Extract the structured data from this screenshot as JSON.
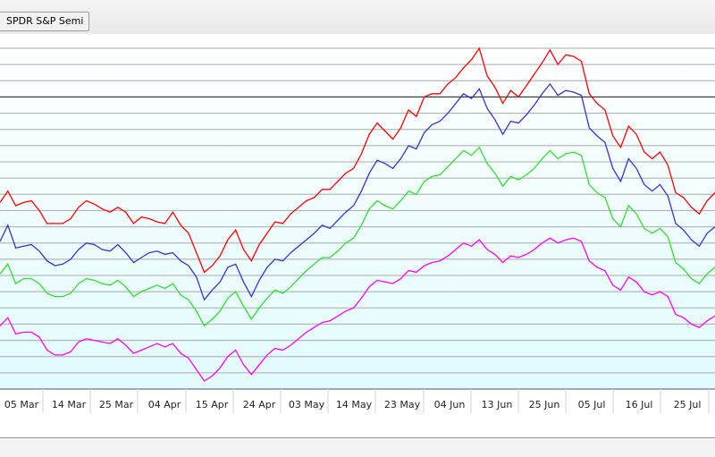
{
  "toolbar": {
    "title_button": "SPDR S&P Semi"
  },
  "chart_data": {
    "type": "line",
    "x_tick_labels": [
      "05 Mar",
      "14 Mar",
      "25 Mar",
      "04 Apr",
      "15 Apr",
      "24 Apr",
      "03 May",
      "14 May",
      "23 May",
      "04 Jun",
      "13 Jun",
      "25 Jun",
      "05 Jul",
      "16 Jul",
      "25 Jul"
    ],
    "grid": true,
    "reference_line": 18,
    "ylim": [
      0,
      21
    ],
    "series": [
      {
        "color": "#ff0000",
        "values": [
          11.5,
          12.2,
          11.3,
          11.5,
          11.6,
          11.0,
          10.2,
          10.2,
          10.2,
          10.5,
          11.2,
          11.6,
          11.4,
          11.1,
          10.9,
          11.2,
          10.9,
          10.2,
          10.6,
          10.5,
          10.3,
          10.2,
          10.9,
          10.1,
          9.6,
          8.4,
          7.2,
          7.6,
          8.2,
          9.2,
          9.8,
          8.6,
          7.9,
          8.9,
          9.6,
          10.3,
          10.2,
          10.8,
          11.2,
          11.6,
          11.8,
          12.3,
          12.3,
          12.8,
          13.3,
          13.6,
          14.5,
          15.7,
          16.4,
          15.9,
          15.4,
          16.1,
          17.2,
          16.8,
          18.0,
          18.2,
          18.2,
          18.8,
          19.2,
          19.8,
          20.3,
          21.0,
          19.3,
          18.6,
          17.6,
          18.4,
          18.0,
          18.7,
          19.4,
          20.1,
          20.9,
          20.0,
          20.6,
          20.5,
          20.2,
          18.2,
          17.6,
          17.2,
          15.6,
          14.9,
          16.2,
          15.7,
          14.6,
          14.2,
          14.6,
          13.8,
          12.1,
          11.8,
          11.2,
          10.8,
          11.6,
          12.1
        ]
      },
      {
        "color": "#3a2fd6",
        "values": [
          9.1,
          10.1,
          8.7,
          8.8,
          8.9,
          8.5,
          7.9,
          7.6,
          7.7,
          8.0,
          8.6,
          9.0,
          8.9,
          8.6,
          8.5,
          8.9,
          8.4,
          7.8,
          8.1,
          8.4,
          8.5,
          8.3,
          8.4,
          7.9,
          7.6,
          6.9,
          5.5,
          6.1,
          6.6,
          7.5,
          7.7,
          6.6,
          5.7,
          6.7,
          7.5,
          8.0,
          7.9,
          8.4,
          8.8,
          9.2,
          9.6,
          10.1,
          9.9,
          10.4,
          10.9,
          11.3,
          12.2,
          13.3,
          14.1,
          13.9,
          13.6,
          14.2,
          15.0,
          14.8,
          15.8,
          16.3,
          16.5,
          17.0,
          17.6,
          18.2,
          17.9,
          18.5,
          17.3,
          16.6,
          15.7,
          16.5,
          16.4,
          16.9,
          17.5,
          18.2,
          18.8,
          18.1,
          18.4,
          18.3,
          18.1,
          16.1,
          15.6,
          15.2,
          13.6,
          12.8,
          14.2,
          13.6,
          12.6,
          12.2,
          12.6,
          11.9,
          10.2,
          9.8,
          9.2,
          8.8,
          9.6,
          10.0
        ]
      },
      {
        "color": "#2ee02e",
        "values": [
          7.1,
          7.7,
          6.5,
          6.8,
          6.8,
          6.5,
          5.9,
          5.7,
          5.7,
          5.9,
          6.5,
          6.8,
          6.7,
          6.5,
          6.4,
          6.7,
          6.3,
          5.7,
          6.0,
          6.2,
          6.4,
          6.2,
          6.5,
          5.8,
          5.5,
          4.8,
          3.9,
          4.3,
          4.8,
          5.6,
          6.0,
          5.1,
          4.3,
          5.0,
          5.6,
          6.1,
          5.9,
          6.3,
          6.8,
          7.3,
          7.7,
          8.1,
          8.1,
          8.5,
          9.0,
          9.3,
          10.1,
          11.1,
          11.6,
          11.3,
          11.1,
          11.6,
          12.2,
          12.0,
          12.8,
          13.1,
          13.2,
          13.7,
          14.2,
          14.7,
          14.4,
          14.9,
          13.9,
          13.3,
          12.5,
          13.1,
          12.9,
          13.2,
          13.6,
          14.2,
          14.7,
          14.2,
          14.5,
          14.6,
          14.4,
          12.6,
          12.1,
          11.8,
          10.5,
          10.0,
          11.3,
          10.8,
          9.9,
          9.6,
          9.9,
          9.4,
          7.8,
          7.4,
          6.8,
          6.5,
          7.1,
          7.5
        ]
      },
      {
        "color": "#ff00ff",
        "values": [
          3.9,
          4.4,
          3.4,
          3.5,
          3.5,
          3.2,
          2.4,
          2.1,
          2.1,
          2.3,
          2.9,
          3.1,
          3.0,
          2.9,
          2.8,
          3.1,
          2.7,
          2.2,
          2.4,
          2.6,
          2.8,
          2.6,
          2.8,
          2.2,
          1.9,
          1.2,
          0.5,
          0.8,
          1.3,
          2.0,
          2.4,
          1.5,
          0.9,
          1.5,
          2.1,
          2.5,
          2.4,
          2.7,
          3.1,
          3.5,
          3.8,
          4.1,
          4.2,
          4.5,
          4.8,
          5.0,
          5.6,
          6.3,
          6.7,
          6.6,
          6.5,
          6.8,
          7.3,
          7.2,
          7.6,
          7.8,
          7.9,
          8.2,
          8.6,
          9.0,
          8.8,
          9.2,
          8.6,
          8.3,
          7.8,
          8.2,
          8.1,
          8.3,
          8.6,
          9.0,
          9.3,
          9.0,
          9.2,
          9.3,
          9.1,
          7.9,
          7.5,
          7.3,
          6.4,
          6.1,
          6.9,
          6.6,
          6.0,
          5.8,
          6.0,
          5.7,
          4.6,
          4.4,
          4.0,
          3.8,
          4.2,
          4.5
        ]
      }
    ]
  }
}
